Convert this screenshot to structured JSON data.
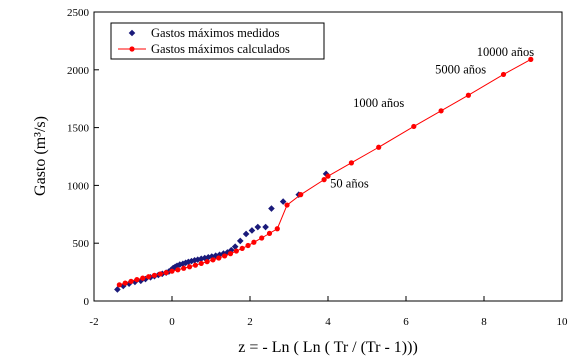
{
  "chart_data": {
    "type": "scatter",
    "xlabel": "z = - Ln ( Ln ( Tr / (Tr - 1)))",
    "ylabel": "Gasto (m³/s)",
    "xlim": [
      -2,
      10
    ],
    "ylim": [
      0,
      2500
    ],
    "xticks": [
      -2,
      0,
      2,
      4,
      6,
      8,
      10
    ],
    "yticks": [
      0,
      500,
      1000,
      1500,
      2000,
      2500
    ],
    "grid": false,
    "legend_position": "top-left",
    "series": [
      {
        "name": "Gastos máximos medidos",
        "marker": "diamond",
        "color": "#1a1a7a",
        "line": false,
        "points": [
          [
            -1.4,
            100
          ],
          [
            -1.25,
            130
          ],
          [
            -1.1,
            150
          ],
          [
            -0.95,
            165
          ],
          [
            -0.8,
            175
          ],
          [
            -0.68,
            190
          ],
          [
            -0.55,
            205
          ],
          [
            -0.45,
            215
          ],
          [
            -0.35,
            225
          ],
          [
            -0.25,
            235
          ],
          [
            -0.15,
            245
          ],
          [
            -0.08,
            255
          ],
          [
            -0.02,
            270
          ],
          [
            0.03,
            285
          ],
          [
            0.08,
            295
          ],
          [
            0.13,
            305
          ],
          [
            0.2,
            315
          ],
          [
            0.28,
            322
          ],
          [
            0.35,
            330
          ],
          [
            0.42,
            338
          ],
          [
            0.5,
            345
          ],
          [
            0.58,
            352
          ],
          [
            0.66,
            358
          ],
          [
            0.75,
            365
          ],
          [
            0.84,
            372
          ],
          [
            0.93,
            378
          ],
          [
            1.02,
            385
          ],
          [
            1.12,
            392
          ],
          [
            1.22,
            400
          ],
          [
            1.32,
            410
          ],
          [
            1.42,
            420
          ],
          [
            1.52,
            440
          ],
          [
            1.62,
            470
          ],
          [
            1.75,
            520
          ],
          [
            1.9,
            580
          ],
          [
            2.05,
            610
          ],
          [
            2.2,
            640
          ],
          [
            2.4,
            640
          ],
          [
            2.55,
            800
          ],
          [
            2.85,
            860
          ],
          [
            3.25,
            920
          ],
          [
            3.95,
            1100
          ]
        ]
      },
      {
        "name": "Gastos máximos calculados",
        "marker": "circle",
        "color": "#ff0000",
        "line": true,
        "points": [
          [
            -1.35,
            140
          ],
          [
            -1.2,
            155
          ],
          [
            -1.05,
            170
          ],
          [
            -0.9,
            185
          ],
          [
            -0.75,
            198
          ],
          [
            -0.6,
            210
          ],
          [
            -0.45,
            222
          ],
          [
            -0.3,
            234
          ],
          [
            -0.15,
            246
          ],
          [
            0,
            258
          ],
          [
            0.15,
            270
          ],
          [
            0.3,
            283
          ],
          [
            0.45,
            296
          ],
          [
            0.6,
            310
          ],
          [
            0.75,
            325
          ],
          [
            0.9,
            340
          ],
          [
            1.05,
            356
          ],
          [
            1.2,
            372
          ],
          [
            1.35,
            390
          ],
          [
            1.5,
            410
          ],
          [
            1.65,
            432
          ],
          [
            1.8,
            455
          ],
          [
            1.95,
            480
          ],
          [
            2.1,
            508
          ],
          [
            2.3,
            545
          ],
          [
            2.5,
            585
          ],
          [
            2.7,
            625
          ],
          [
            2.95,
            830
          ],
          [
            3.3,
            920
          ],
          [
            3.9,
            1050
          ],
          [
            4.0,
            1080
          ],
          [
            4.6,
            1195
          ],
          [
            5.3,
            1330
          ],
          [
            6.2,
            1510
          ],
          [
            6.9,
            1645
          ],
          [
            7.6,
            1780
          ],
          [
            8.5,
            1960
          ],
          [
            9.2,
            2090
          ]
        ]
      }
    ],
    "annotations": [
      {
        "text": "10000 años",
        "x": 8.55,
        "y": 2120
      },
      {
        "text": "5000 años",
        "x": 7.4,
        "y": 1970
      },
      {
        "text": "1000 años",
        "x": 5.3,
        "y": 1680
      },
      {
        "text": "50 años",
        "x": 4.55,
        "y": 980
      }
    ]
  }
}
